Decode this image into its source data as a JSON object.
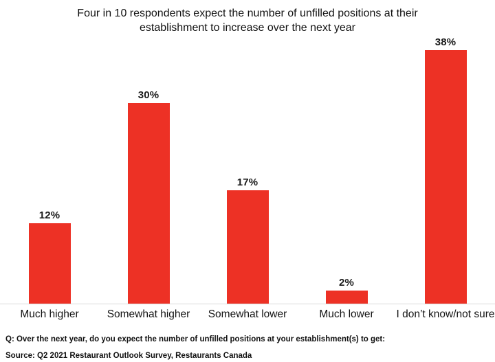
{
  "title": "Four in 10 respondents expect the number of unfilled positions at their establishment to increase over the next year",
  "chart_data": {
    "type": "bar",
    "title": "Four in 10 respondents expect the number of unfilled positions at their establishment to increase over the next year",
    "categories": [
      "Much higher",
      "Somewhat higher",
      "Somewhat lower",
      "Much lower",
      "I don’t know/not sure"
    ],
    "values": [
      12,
      30,
      17,
      2,
      38
    ],
    "value_labels": [
      "12%",
      "30%",
      "17%",
      "2%",
      "38%"
    ],
    "xlabel": "",
    "ylabel": "",
    "ylim": [
      0,
      40
    ],
    "grid": false,
    "legend": "none",
    "bar_color": "#ED3125",
    "axis_line_color": "#D8D8D8",
    "label_color": "#1A1A1A"
  },
  "footer": {
    "question": "Q: Over the next year, do you expect the number of unfilled positions at your establishment(s) to get:",
    "source": "Source: Q2 2021 Restaurant Outlook Survey, Restaurants Canada"
  }
}
